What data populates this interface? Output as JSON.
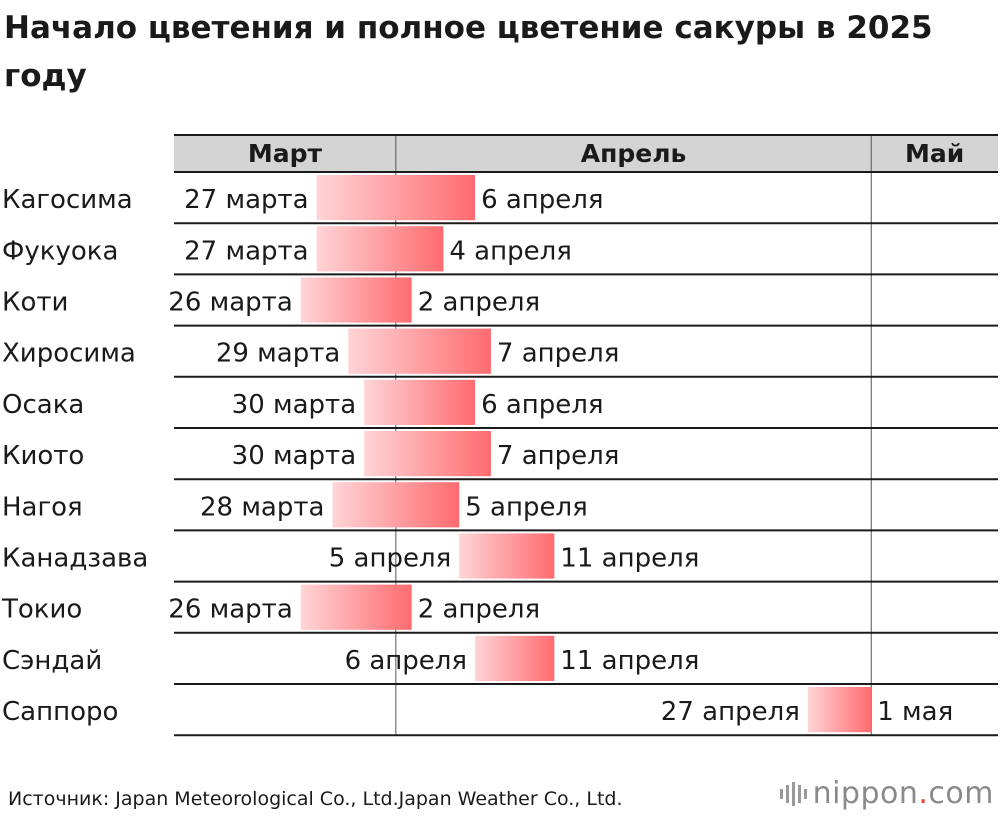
{
  "title": "Начало цветения и полное цветение сакуры в 2025 году",
  "source": "Источник: Japan Meteorological Co., Ltd.Japan Weather Co., Ltd.",
  "logo": {
    "name": "nippon",
    "dot": ".",
    "tld": "com"
  },
  "colors": {
    "header_bg": "#d4d4d4",
    "bar_start": "#ffd4d6",
    "bar_end": "#ff6b6f",
    "rule": "#1a1a1a"
  },
  "chart_data": {
    "type": "gantt",
    "title": "Начало цветения и полное цветение сакуры в 2025 году",
    "months": [
      {
        "label": "Март",
        "start": "2025-03-18",
        "end": "2025-04-01"
      },
      {
        "label": "Апрель",
        "start": "2025-04-01",
        "end": "2025-05-01"
      },
      {
        "label": "Май",
        "start": "2025-05-01",
        "end": "2025-05-09"
      }
    ],
    "rows": [
      {
        "city": "Кагосима",
        "start": "2025-03-27",
        "end": "2025-04-06",
        "start_label": "27 марта",
        "end_label": "6 апреля"
      },
      {
        "city": "Фукуока",
        "start": "2025-03-27",
        "end": "2025-04-04",
        "start_label": "27 марта",
        "end_label": "4 апреля"
      },
      {
        "city": "Коти",
        "start": "2025-03-26",
        "end": "2025-04-02",
        "start_label": "26 марта",
        "end_label": "2 апреля"
      },
      {
        "city": "Хиросима",
        "start": "2025-03-29",
        "end": "2025-04-07",
        "start_label": "29 марта",
        "end_label": "7 апреля"
      },
      {
        "city": "Осака",
        "start": "2025-03-30",
        "end": "2025-04-06",
        "start_label": "30 марта",
        "end_label": "6 апреля"
      },
      {
        "city": "Киото",
        "start": "2025-03-30",
        "end": "2025-04-07",
        "start_label": "30 марта",
        "end_label": "7 апреля"
      },
      {
        "city": "Нагоя",
        "start": "2025-03-28",
        "end": "2025-04-05",
        "start_label": "28 марта",
        "end_label": "5 апреля"
      },
      {
        "city": "Канадзава",
        "start": "2025-04-05",
        "end": "2025-04-11",
        "start_label": "5 апреля",
        "end_label": "11 апреля"
      },
      {
        "city": "Токио",
        "start": "2025-03-26",
        "end": "2025-04-02",
        "start_label": "26 марта",
        "end_label": "2 апреля"
      },
      {
        "city": "Сэндай",
        "start": "2025-04-06",
        "end": "2025-04-11",
        "start_label": "6 апреля",
        "end_label": "11 апреля"
      },
      {
        "city": "Саппоро",
        "start": "2025-04-27",
        "end": "2025-05-01",
        "start_label": "27 апреля",
        "end_label": "1 мая"
      }
    ]
  }
}
